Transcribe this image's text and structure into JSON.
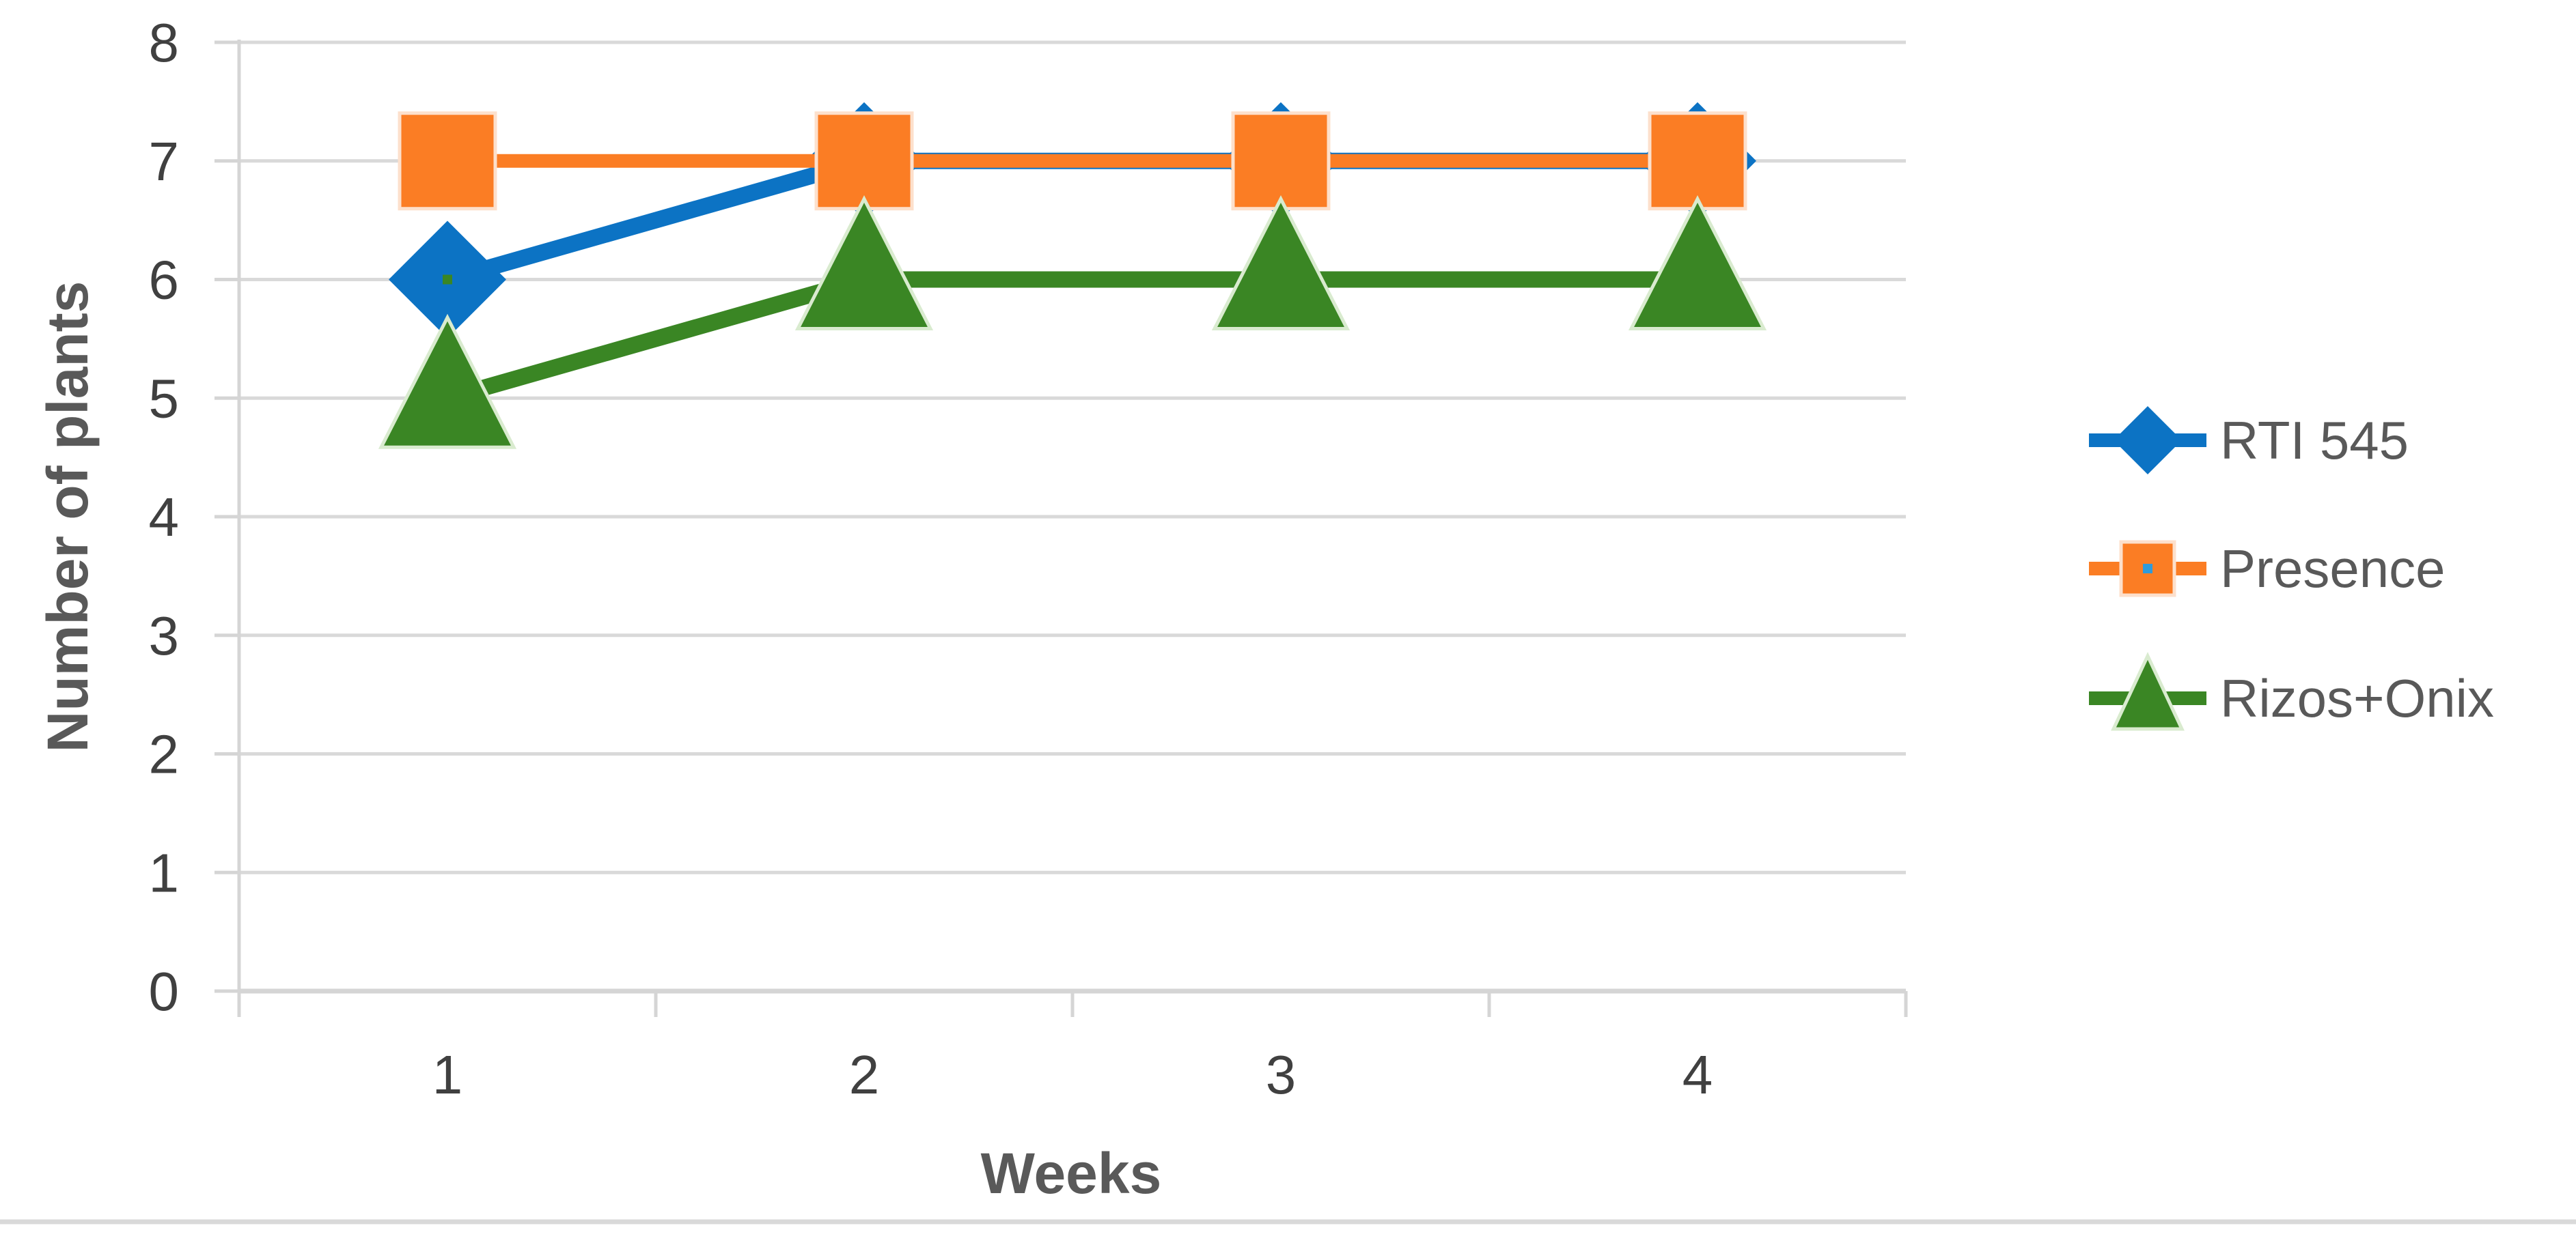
{
  "chart_data": {
    "type": "line",
    "title": "",
    "xlabel": "Weeks",
    "ylabel": "Number of plants",
    "categories": [
      1,
      2,
      3,
      4
    ],
    "x_tick_labels": [
      "1",
      "2",
      "3",
      "4"
    ],
    "y_ticks": [
      0,
      1,
      2,
      3,
      4,
      5,
      6,
      7,
      8
    ],
    "ylim": [
      0,
      8
    ],
    "grid": true,
    "legend_position": "right",
    "series": [
      {
        "name": "RTI 545",
        "marker": "diamond",
        "color": "#0C73C4",
        "values": [
          6,
          7,
          7,
          7
        ]
      },
      {
        "name": "Presence",
        "marker": "square",
        "color": "#FB7D24",
        "values": [
          7,
          7,
          7,
          7
        ]
      },
      {
        "name": "Rizos+Onix",
        "marker": "triangle",
        "color": "#3A8624",
        "values": [
          5,
          6,
          6,
          6
        ]
      }
    ]
  },
  "theme": {
    "background": "#FFFFFF",
    "gridline_color": "#D9D9D9",
    "axis_line_color": "#D5D5D5",
    "tick_text_color": "#404040",
    "axis_title_color": "#595959",
    "legend_text_color": "#595959",
    "divider_color": "#D9D9D9",
    "square_halo": "#FDE0CC",
    "triangle_halo": "#D9EBCF",
    "legend_square_dot": "#2E9BDB",
    "diamond_center_dot": "#3A8624"
  }
}
